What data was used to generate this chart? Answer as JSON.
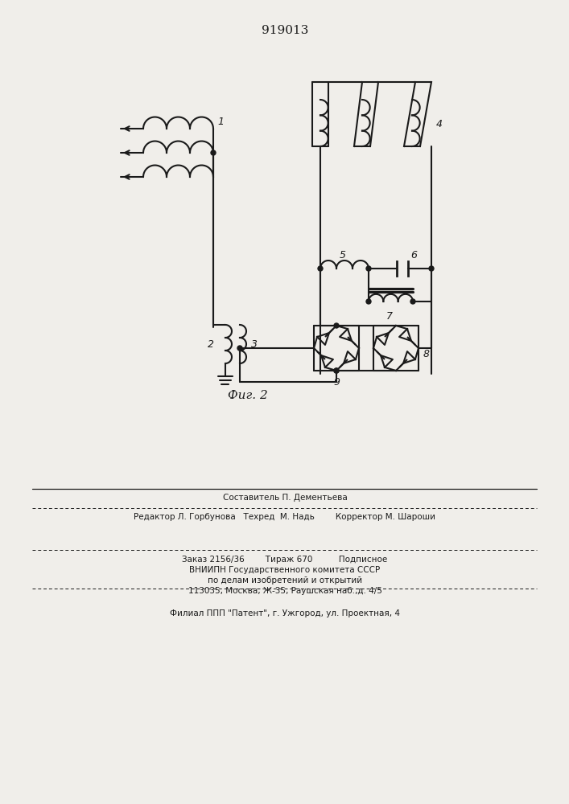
{
  "title": "919013",
  "fig_label": "Фиг. 2",
  "bg_color": "#f0eeea",
  "line_color": "#1a1a1a",
  "footer_line1": "Составитель П. Дементьева",
  "footer_line2": "Редактор Л. Горбунова   Техред  М. Надь        Корректор М. Шароши",
  "footer_line3": "Заказ 2156/36        Тираж 670          Подписное",
  "footer_line4": "ВНИИПН Государственного комитета СССР",
  "footer_line5": "по делам изобретений и открытий",
  "footer_line6": "113035, Москва, Ж-35, Раушская наб.,д. 4/5",
  "footer_line7": "Филиал ППП \"Патент\", г. Ужгород, ул. Проектная, 4"
}
